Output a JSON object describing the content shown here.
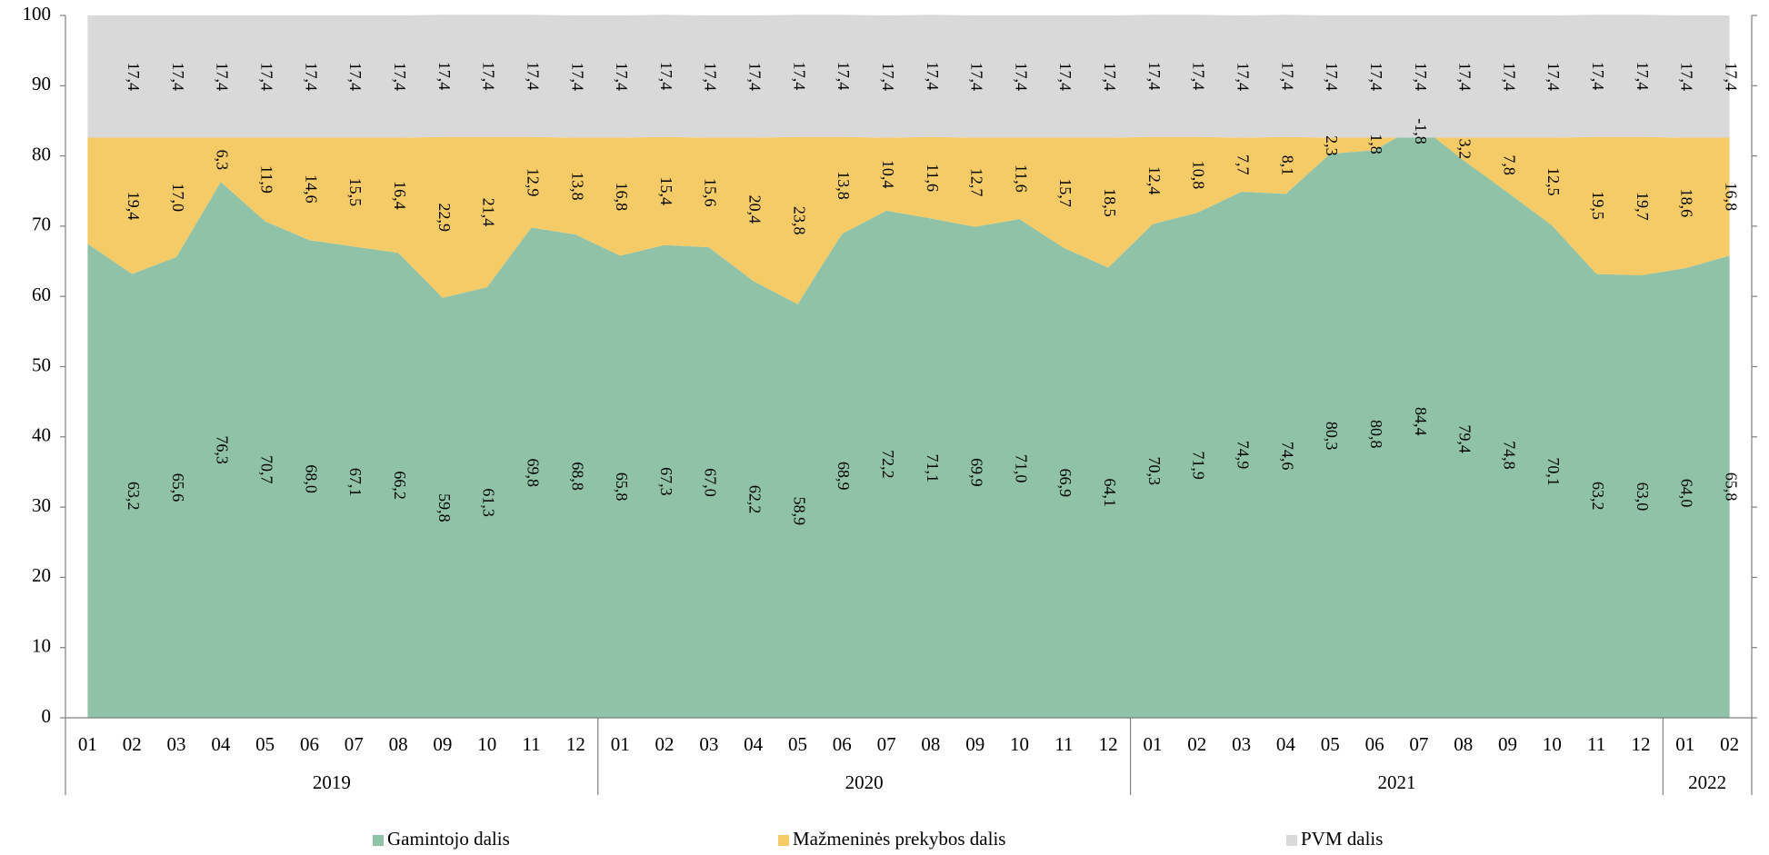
{
  "chart_data": {
    "type": "stacked_area",
    "categories": [
      "01",
      "02",
      "03",
      "04",
      "05",
      "06",
      "07",
      "08",
      "09",
      "10",
      "11",
      "12",
      "01",
      "02",
      "03",
      "04",
      "05",
      "06",
      "07",
      "08",
      "09",
      "10",
      "11",
      "12",
      "01",
      "02",
      "03",
      "04",
      "05",
      "06",
      "07",
      "08",
      "09",
      "10",
      "11",
      "12",
      "01",
      "02"
    ],
    "years": [
      "2019",
      "2020",
      "2021",
      "2022"
    ],
    "series": [
      {
        "name": "Gamintojo dalis",
        "color": "#8fc2a6",
        "values": [
          67.5,
          63.2,
          65.6,
          76.3,
          70.7,
          68.0,
          67.1,
          66.2,
          59.8,
          61.3,
          69.8,
          68.8,
          65.8,
          67.3,
          67.0,
          62.2,
          58.9,
          68.9,
          72.2,
          71.1,
          69.9,
          71.0,
          66.9,
          64.1,
          70.3,
          71.9,
          74.9,
          74.6,
          80.3,
          80.8,
          84.4,
          79.4,
          74.8,
          70.1,
          63.2,
          63.0,
          64.0,
          65.8
        ],
        "value_labels": [
          null,
          "63,2",
          "65,6",
          "76,3",
          "70,7",
          "68,0",
          "67,1",
          "66,2",
          "59,8",
          "61,3",
          "69,8",
          "68,8",
          "65,8",
          "67,3",
          "67,0",
          "62,2",
          "58,9",
          "68,9",
          "72,2",
          "71,1",
          "69,9",
          "71,0",
          "66,9",
          "64,1",
          "70,3",
          "71,9",
          "74,9",
          "74,6",
          "80,3",
          "80,8",
          "84,4",
          "79,4",
          "74,8",
          "70,1",
          "63,2",
          "63,0",
          "64,0",
          "65,8"
        ]
      },
      {
        "name": "Mažmeninės prekybos dalis",
        "color": "#f5cb67",
        "values": [
          15.1,
          19.4,
          17.0,
          6.3,
          11.9,
          14.6,
          15.5,
          16.4,
          22.9,
          21.4,
          12.9,
          13.8,
          16.8,
          15.4,
          15.6,
          20.4,
          23.8,
          13.8,
          10.4,
          11.6,
          12.7,
          11.6,
          15.7,
          18.5,
          12.4,
          10.8,
          7.7,
          8.1,
          2.3,
          1.8,
          -1.8,
          3.2,
          7.8,
          12.5,
          19.5,
          19.7,
          18.6,
          16.8
        ],
        "value_labels": [
          null,
          "19,4",
          "17,0",
          "6,3",
          "11,9",
          "14,6",
          "15,5",
          "16,4",
          "22,9",
          "21,4",
          "12,9",
          "13,8",
          "16,8",
          "15,4",
          "15,6",
          "20,4",
          "23,8",
          "13,8",
          "10,4",
          "11,6",
          "12,7",
          "11,6",
          "15,7",
          "18,5",
          "12,4",
          "10,8",
          "7,7",
          "8,1",
          "2,3",
          "1,8",
          "-1,8",
          "3,2",
          "7,8",
          "12,5",
          "19,5",
          "19,7",
          "18,6",
          "16,8"
        ]
      },
      {
        "name": "PVM dalis",
        "color": "#d9d9d9",
        "values": [
          17.4,
          17.4,
          17.4,
          17.4,
          17.4,
          17.4,
          17.4,
          17.4,
          17.4,
          17.4,
          17.4,
          17.4,
          17.4,
          17.4,
          17.4,
          17.4,
          17.4,
          17.4,
          17.4,
          17.4,
          17.4,
          17.4,
          17.4,
          17.4,
          17.4,
          17.4,
          17.4,
          17.4,
          17.4,
          17.4,
          17.4,
          17.4,
          17.4,
          17.4,
          17.4,
          17.4,
          17.4,
          17.4
        ],
        "value_labels": [
          null,
          "17,4",
          "17,4",
          "17,4",
          "17,4",
          "17,4",
          "17,4",
          "17,4",
          "17,4",
          "17,4",
          "17,4",
          "17,4",
          "17,4",
          "17,4",
          "17,4",
          "17,4",
          "17,4",
          "17,4",
          "17,4",
          "17,4",
          "17,4",
          "17,4",
          "17,4",
          "17,4",
          "17,4",
          "17,4",
          "17,4",
          "17,4",
          "17,4",
          "17,4",
          "17,4",
          "17,4",
          "17,4",
          "17,4",
          "17,4",
          "17,4",
          "17,4",
          "17,4"
        ]
      }
    ],
    "ylim": [
      0,
      100
    ],
    "yticks": [
      0,
      10,
      20,
      30,
      40,
      50,
      60,
      70,
      80,
      90,
      100
    ],
    "legend": "bottom"
  }
}
